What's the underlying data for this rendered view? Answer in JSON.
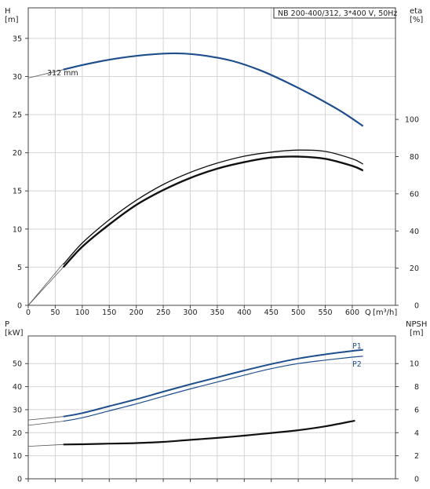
{
  "chart_data": [
    {
      "type": "line",
      "title": "NB 200-400/312, 3*400 V, 50Hz",
      "left_axis": {
        "name": "H",
        "unit": "[m]",
        "ylim": [
          0,
          39
        ],
        "ticks": [
          0,
          5,
          10,
          15,
          20,
          25,
          30,
          35
        ]
      },
      "right_axis": {
        "name": "eta",
        "unit": "[%]",
        "ylim": [
          0,
          160
        ],
        "ticks": [
          0,
          20,
          40,
          60,
          80,
          100
        ]
      },
      "x_axis": {
        "name": "Q",
        "unit": "[m³/h]",
        "xlim": [
          0,
          680
        ],
        "ticks": [
          0,
          50,
          100,
          150,
          200,
          250,
          300,
          350,
          400,
          450,
          500,
          550,
          600
        ]
      },
      "grid": true,
      "series": [
        {
          "name": "312 mm",
          "axis": "left",
          "color": "#1f4e8c",
          "width": 2.2,
          "x": [
            65,
            100,
            150,
            200,
            250,
            290,
            330,
            380,
            430,
            480,
            530,
            580,
            620
          ],
          "y": [
            30.9,
            31.5,
            32.2,
            32.7,
            33.0,
            33.0,
            32.7,
            32.0,
            30.8,
            29.2,
            27.4,
            25.4,
            23.5
          ]
        },
        {
          "name": "",
          "axis": "right",
          "color": "#111111",
          "width": 1.3,
          "x": [
            65,
            100,
            150,
            200,
            250,
            300,
            350,
            400,
            450,
            500,
            550,
            600,
            620
          ],
          "y": [
            22.0,
            33.5,
            46.0,
            56.5,
            65.0,
            71.5,
            76.5,
            80.2,
            82.4,
            83.5,
            82.8,
            78.8,
            76.0
          ]
        },
        {
          "name": "",
          "axis": "right",
          "color": "#111111",
          "width": 2.4,
          "x": [
            65,
            100,
            150,
            200,
            250,
            300,
            350,
            400,
            450,
            500,
            550,
            600,
            620
          ],
          "y": [
            20.5,
            31.5,
            43.5,
            54.0,
            62.0,
            68.5,
            73.5,
            77.0,
            79.5,
            80.0,
            78.8,
            75.0,
            72.5
          ]
        }
      ],
      "extrapolated": [
        {
          "axis": "left",
          "x": [
            0,
            65
          ],
          "y": [
            29.8,
            30.9
          ]
        },
        {
          "axis": "left",
          "x": [
            0,
            65
          ],
          "y": [
            0,
            5.5
          ]
        },
        {
          "axis": "left",
          "x": [
            0,
            65
          ],
          "y": [
            0,
            5.0
          ]
        }
      ]
    },
    {
      "type": "line",
      "left_axis": {
        "name": "P",
        "unit": "[kW]",
        "ylim": [
          0,
          62
        ],
        "ticks": [
          0,
          10,
          20,
          30,
          40,
          50
        ]
      },
      "right_axis": {
        "name": "NPSH",
        "unit": "[m]",
        "ylim": [
          0,
          12.4
        ],
        "ticks": [
          0,
          2,
          4,
          6,
          8,
          10
        ]
      },
      "x_axis": {
        "xlim": [
          0,
          680
        ],
        "ticks": [
          0,
          50,
          100,
          150,
          200,
          250,
          300,
          350,
          400,
          450,
          500,
          550,
          600
        ]
      },
      "grid": true,
      "series": [
        {
          "name": "P1",
          "axis": "left",
          "color": "#1f4e8c",
          "width": 2.0,
          "x": [
            65,
            100,
            150,
            200,
            250,
            300,
            350,
            400,
            450,
            500,
            550,
            600,
            620
          ],
          "y": [
            27.0,
            28.5,
            31.5,
            34.5,
            37.8,
            41.0,
            44.0,
            47.0,
            49.8,
            52.2,
            54.0,
            55.5,
            56.0
          ]
        },
        {
          "name": "P2",
          "axis": "left",
          "color": "#1f4e8c",
          "width": 1.2,
          "x": [
            65,
            100,
            150,
            200,
            250,
            300,
            350,
            400,
            450,
            500,
            550,
            600,
            620
          ],
          "y": [
            25.0,
            26.5,
            29.5,
            32.5,
            35.8,
            39.0,
            42.0,
            45.0,
            47.8,
            50.0,
            51.5,
            52.8,
            53.2
          ]
        },
        {
          "name": "",
          "axis": "right",
          "color": "#111111",
          "width": 2.2,
          "x": [
            65,
            100,
            150,
            200,
            250,
            300,
            350,
            400,
            450,
            500,
            550,
            605
          ],
          "y": [
            2.98,
            3.0,
            3.05,
            3.1,
            3.2,
            3.38,
            3.55,
            3.75,
            3.98,
            4.22,
            4.55,
            5.05
          ]
        }
      ],
      "extrapolated": [
        {
          "axis": "left",
          "x": [
            0,
            65
          ],
          "y": [
            25.5,
            27.0
          ]
        },
        {
          "axis": "left",
          "x": [
            0,
            65
          ],
          "y": [
            23.2,
            25.0
          ]
        },
        {
          "axis": "right",
          "x": [
            0,
            65
          ],
          "y": [
            2.82,
            2.98
          ]
        }
      ]
    }
  ]
}
